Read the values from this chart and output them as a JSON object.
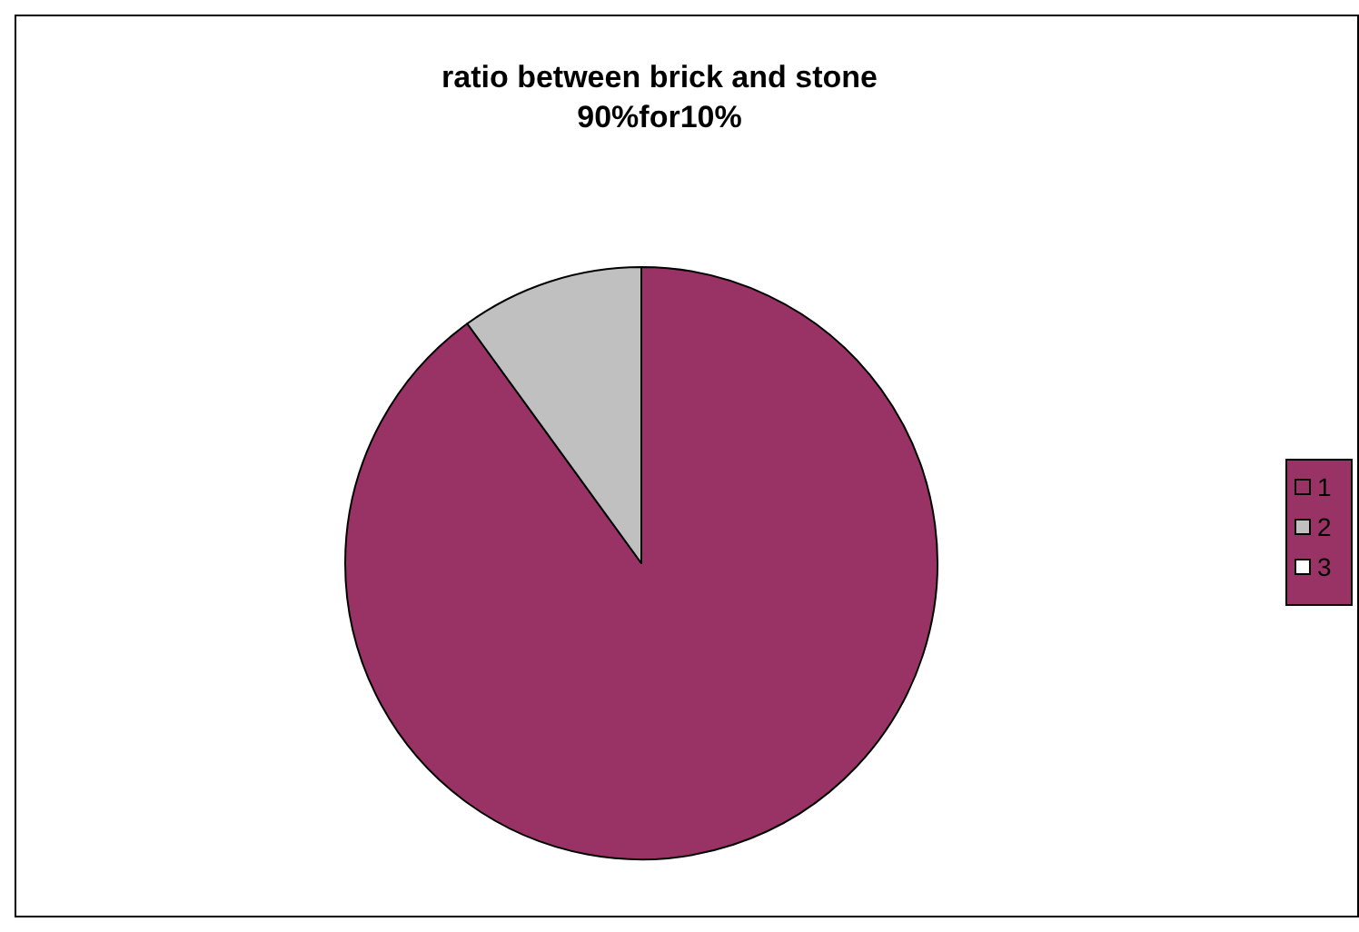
{
  "chart_data": {
    "type": "pie",
    "title": "ratio between brick and stone\n90%for10%",
    "categories": [
      "1",
      "2",
      "3"
    ],
    "values": [
      90,
      10,
      0
    ],
    "colors": [
      "#993366",
      "#c0c0c0",
      "#ffffff"
    ],
    "legend": "right"
  }
}
